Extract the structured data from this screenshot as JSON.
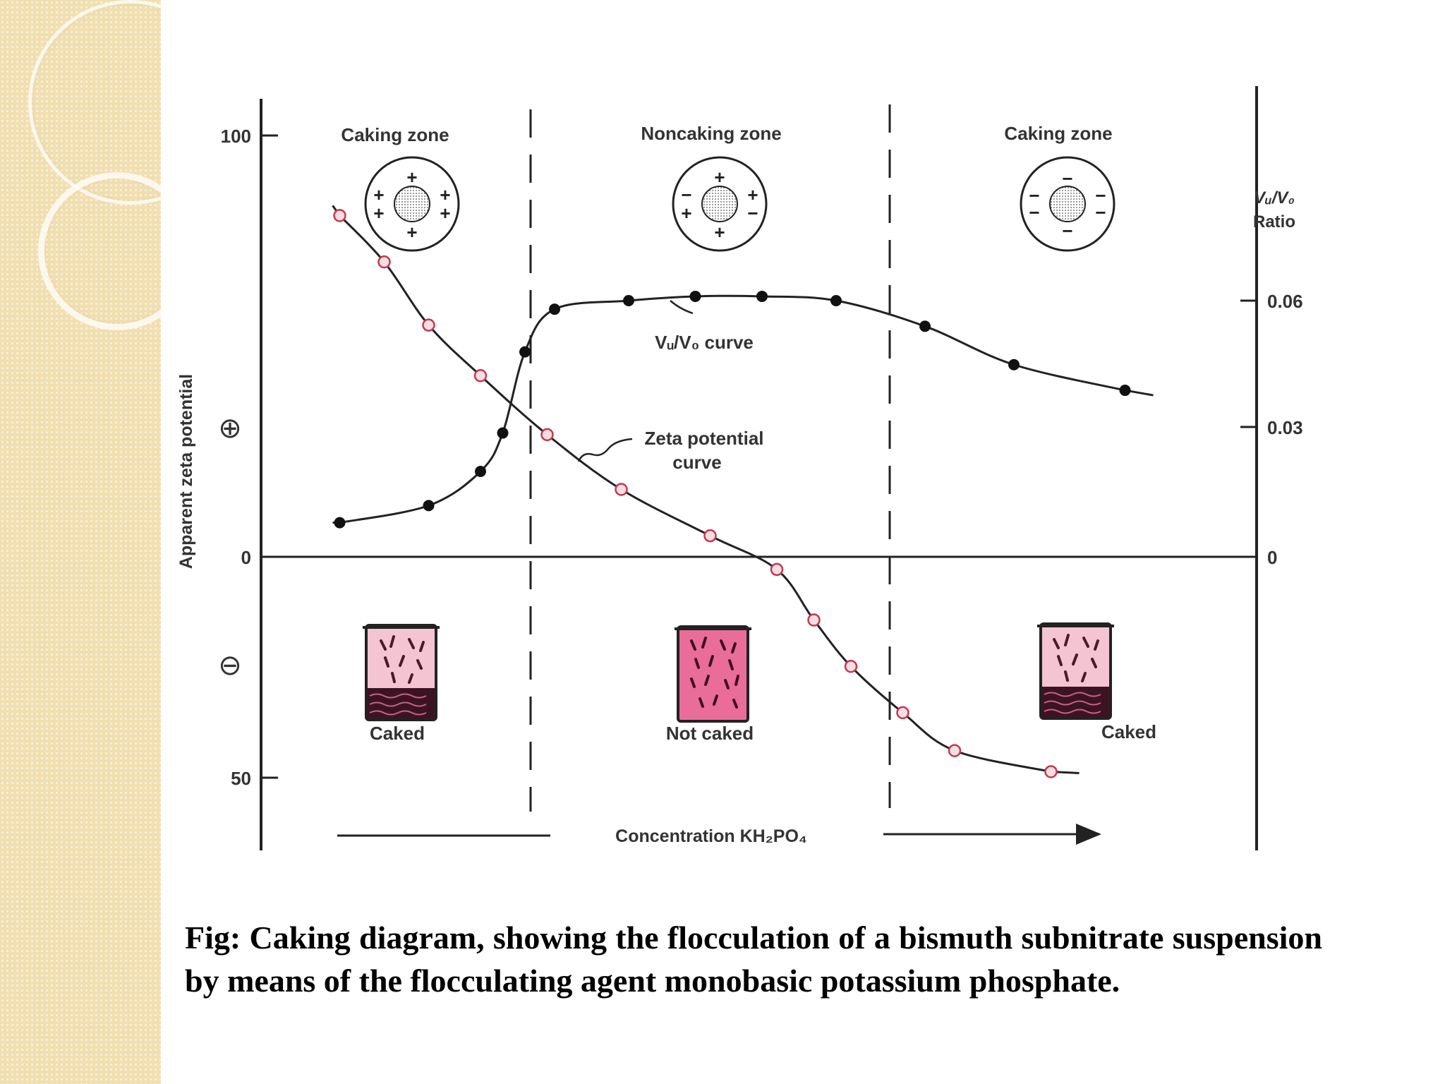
{
  "chart_data": {
    "type": "line",
    "xlabel": "Concentration KH₂PO₄",
    "ylabel_left": "Apparent zeta potential",
    "ylabel_right": [
      "Vᵤ/V₀",
      "Ratio"
    ],
    "left_axis": {
      "ticks": [
        {
          "value": 100,
          "label": "100"
        },
        {
          "value": 0,
          "label": "0"
        },
        {
          "value": -50,
          "label": "50"
        }
      ],
      "sign_positive": "⊕",
      "sign_negative": "⊖"
    },
    "right_axis": {
      "ticks": [
        {
          "value": 0.06,
          "label": "0.06"
        },
        {
          "value": 0.03,
          "label": "0.03"
        },
        {
          "value": 0,
          "label": "0"
        }
      ]
    },
    "zones": [
      "Caking zone",
      "Noncaking zone",
      "Caking zone"
    ],
    "particle_charges": [
      "+",
      "−"
    ],
    "series": [
      {
        "name": "Zeta potential curve",
        "axis": "left",
        "marker": "open-circle",
        "color": "#c23a52",
        "x": [
          0.3,
          0.9,
          1.5,
          2.2,
          3.1,
          4.1,
          5.3,
          6.2,
          6.7,
          7.2,
          7.9,
          8.6,
          9.9
        ],
        "y": [
          81,
          70,
          55,
          43,
          29,
          16,
          5,
          -3,
          -15,
          -26,
          -37,
          -46,
          -51
        ]
      },
      {
        "name": "Vᵤ/V₀ curve",
        "axis": "right",
        "marker": "filled-circle",
        "color": "#111111",
        "x": [
          0.3,
          1.5,
          2.2,
          2.5,
          2.8,
          3.2,
          4.2,
          5.1,
          6.0,
          7.0,
          8.2,
          9.4,
          10.9
        ],
        "y": [
          0.008,
          0.012,
          0.02,
          0.029,
          0.048,
          0.058,
          0.06,
          0.061,
          0.061,
          0.06,
          0.054,
          0.045,
          0.039
        ]
      }
    ],
    "annotations": [
      {
        "text": "Vᵤ/V₀ curve"
      },
      {
        "lines": [
          "Zeta potential",
          "curve"
        ]
      }
    ],
    "jar_labels": [
      "Caked",
      "Not caked",
      "Caked"
    ]
  },
  "caption": "Fig: Caking diagram, showing the flocculation of a bismuth subnitrate suspension by means of the flocculating agent monobasic potassium phosphate."
}
